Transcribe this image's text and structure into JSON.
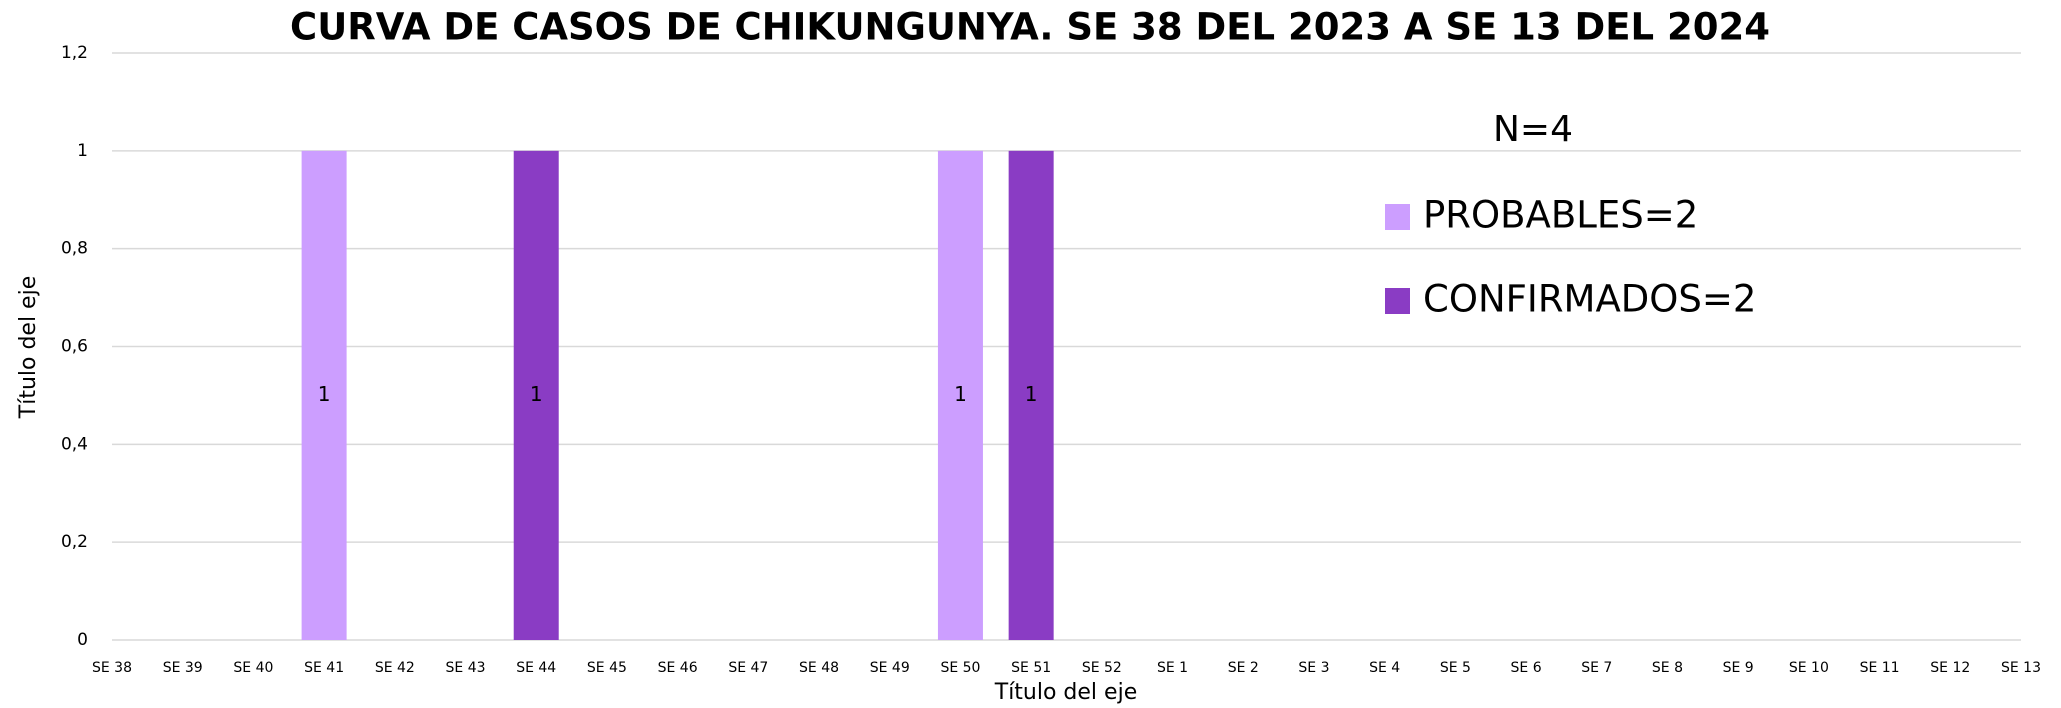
{
  "chart_data": {
    "type": "bar",
    "stacked": true,
    "title": "CURVA DE CASOS DE CHIKUNGUNYA. SE 38 DEL 2023 A SE 13 DEL 2024",
    "annotation": "N=4",
    "x_label": "Título del eje",
    "y_label": "Título del eje",
    "categories": [
      "SE 38",
      "SE 39",
      "SE 40",
      "SE 41",
      "SE 42",
      "SE 43",
      "SE 44",
      "SE 45",
      "SE 46",
      "SE 47",
      "SE 48",
      "SE 49",
      "SE 50",
      "SE 51",
      "SE 52",
      "SE 1",
      "SE 2",
      "SE 3",
      "SE 4",
      "SE 5",
      "SE 6",
      "SE 7",
      "SE 8",
      "SE 9",
      "SE 10",
      "SE 11",
      "SE 12",
      "SE 13"
    ],
    "series": [
      {
        "name": "PROBABLES=2",
        "color": "#cc9eff",
        "values": [
          null,
          null,
          null,
          1,
          null,
          null,
          null,
          null,
          null,
          null,
          null,
          null,
          1,
          null,
          null,
          null,
          null,
          null,
          null,
          null,
          null,
          null,
          null,
          null,
          null,
          null,
          null,
          null
        ]
      },
      {
        "name": "CONFIRMADOS=2",
        "color": "#8a3cc4",
        "values": [
          null,
          null,
          null,
          null,
          null,
          null,
          1,
          null,
          null,
          null,
          null,
          null,
          null,
          1,
          null,
          null,
          null,
          null,
          null,
          null,
          null,
          null,
          null,
          null,
          null,
          null,
          null,
          null
        ]
      }
    ],
    "ylim": [
      0,
      1.2
    ],
    "yticks": [
      0,
      {
        "value": 0.2,
        "label": "0,2"
      },
      {
        "value": 0.4,
        "label": "0,4"
      },
      {
        "value": 0.6,
        "label": "0,6"
      },
      {
        "value": 0.8,
        "label": "0,8"
      },
      1,
      {
        "value": 1.2,
        "label": "1,2"
      }
    ],
    "grid": true,
    "legend": "upper right"
  }
}
